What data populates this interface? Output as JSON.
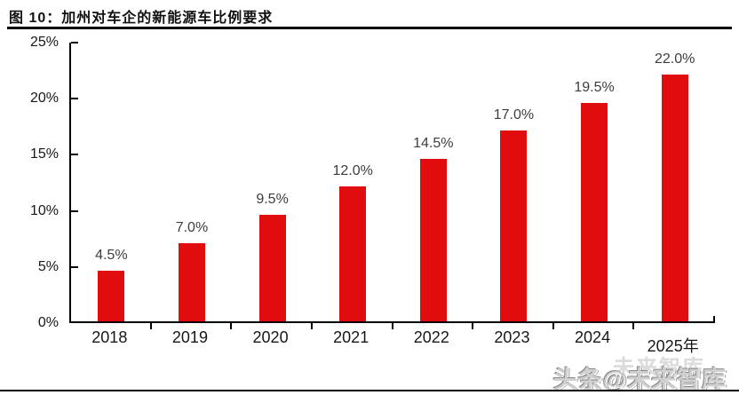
{
  "figure": {
    "title": "图  10：加州对车企的新能源车比例要求"
  },
  "chart_data": {
    "type": "bar",
    "title": "加州对车企的新能源车比例要求",
    "categories": [
      "2018",
      "2019",
      "2020",
      "2021",
      "2022",
      "2023",
      "2024",
      "2025年"
    ],
    "values": [
      4.5,
      7.0,
      9.5,
      12.0,
      14.5,
      17.0,
      19.5,
      22.0
    ],
    "data_labels": [
      "4.5%",
      "7.0%",
      "9.5%",
      "12.0%",
      "14.5%",
      "17.0%",
      "19.5%",
      "22.0%"
    ],
    "xlabel": "",
    "ylabel": "",
    "ylim": [
      0,
      25
    ],
    "y_tick_step": 5,
    "y_tick_labels": [
      "0%",
      "5%",
      "10%",
      "15%",
      "20%",
      "25%"
    ],
    "bar_color": "#e10c0e",
    "grid": false,
    "legend": false
  },
  "watermark": {
    "text": "头条@未来智库",
    "ghost_text": "未来智库"
  }
}
